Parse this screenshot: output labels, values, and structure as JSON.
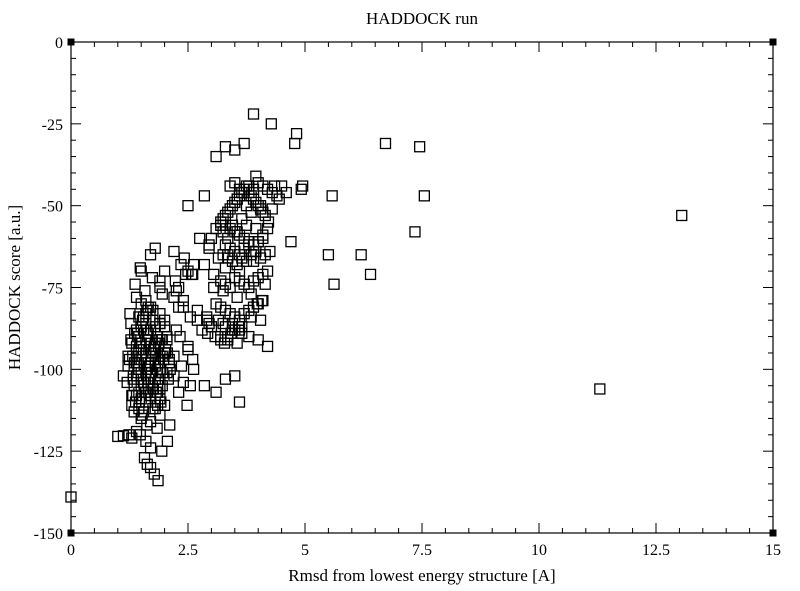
{
  "chart_data": {
    "type": "scatter",
    "title": "HADDOCK run",
    "xlabel": "Rmsd from lowest energy structure [A]",
    "ylabel": "HADDOCK score [a.u.]",
    "xlim": [
      0,
      15
    ],
    "ylim": [
      -150,
      0
    ],
    "xticks": [
      0,
      2.5,
      5,
      7.5,
      10,
      12.5,
      15
    ],
    "xtick_labels": [
      "0",
      "2.5",
      "5",
      "7.5",
      "10",
      "12.5",
      "15"
    ],
    "yticks": [
      0,
      -25,
      -50,
      -75,
      -100,
      -125,
      -150
    ],
    "ytick_labels": [
      "0",
      "-25",
      "-50",
      "-75",
      "-100",
      "-125",
      "-150"
    ],
    "grid": false,
    "marker": "open-square",
    "series": [
      {
        "x": [
          0.0,
          1.0,
          1.12,
          1.24,
          1.3,
          1.4,
          1.48,
          1.57,
          1.63,
          1.7,
          1.78,
          1.86,
          1.94,
          2.06,
          2.11,
          1.6,
          1.7,
          1.35,
          1.45,
          1.55,
          1.75,
          1.85,
          1.5,
          1.7,
          1.9,
          1.62,
          1.84,
          1.4,
          1.5,
          1.6,
          1.7,
          1.8,
          1.9,
          2.0,
          1.45,
          1.65,
          1.85,
          1.35,
          1.55,
          1.75,
          1.95,
          1.4,
          1.5,
          1.6,
          1.7,
          1.8,
          1.9,
          1.45,
          1.65,
          1.85,
          2.05,
          1.4,
          1.5,
          1.6,
          1.7,
          1.8,
          1.9,
          2.0,
          1.55,
          1.75,
          1.95,
          1.4,
          1.5,
          1.6,
          1.7,
          1.8,
          1.9,
          1.45,
          1.65,
          1.85,
          2.05,
          1.4,
          1.5,
          1.6,
          1.7,
          1.8,
          1.9,
          2.0,
          1.55,
          1.75,
          1.45,
          1.6,
          1.75,
          1.9,
          1.5,
          1.7,
          1.32,
          1.43,
          1.55,
          1.65,
          1.77,
          1.88,
          1.98,
          2.08,
          1.36,
          1.58,
          1.8,
          1.28,
          1.38,
          1.5,
          1.62,
          1.72,
          1.85,
          1.95,
          2.1,
          1.26,
          1.3,
          1.35,
          1.47,
          1.53,
          1.64,
          1.72,
          1.83,
          1.92,
          2.02,
          1.25,
          1.33,
          1.42,
          1.52,
          1.62,
          1.68,
          1.78,
          1.9,
          2.0,
          2.12,
          1.12,
          1.22,
          1.3,
          1.42,
          1.5,
          1.6,
          1.7,
          1.8,
          1.94,
          2.06,
          1.2,
          1.28,
          1.36,
          1.46,
          1.55,
          1.66,
          1.76,
          1.87,
          1.96,
          2.1,
          1.22,
          1.32,
          1.4,
          1.5,
          1.6,
          1.7,
          1.8,
          1.9,
          2.02,
          1.3,
          1.4,
          1.5,
          1.62,
          1.72,
          1.82,
          1.92,
          1.45,
          1.66,
          1.86,
          1.37,
          1.58,
          1.74,
          1.95,
          1.48,
          1.9,
          1.5,
          1.6,
          1.7,
          1.8,
          1.9,
          2.0,
          1.4,
          1.65,
          1.9,
          2.05,
          2.2,
          2.35,
          2.42,
          2.5,
          2.62,
          2.23,
          2.3,
          2.45,
          2.58,
          2.2,
          2.4,
          2.55,
          2.7,
          2.25,
          2.33,
          2.5,
          2.6,
          2.2,
          2.4,
          2.55,
          2.3,
          2.48,
          2.2,
          2.36,
          2.5,
          2.62,
          2.25,
          2.4,
          2.3,
          2.85,
          2.95,
          3.0,
          3.1,
          3.2,
          3.25,
          3.3,
          3.35,
          3.4,
          3.45,
          3.5,
          3.55,
          3.6,
          3.65,
          3.7,
          3.75,
          3.8,
          3.85,
          3.9,
          3.95,
          4.0,
          4.05,
          4.1,
          4.15,
          3.2,
          3.3,
          3.4,
          3.5,
          3.6,
          3.7,
          3.8,
          3.9,
          4.0,
          4.1,
          3.25,
          3.45,
          3.65,
          3.85,
          4.05,
          3.3,
          3.4,
          3.5,
          3.6,
          3.7,
          3.8,
          3.9,
          4.0,
          4.1,
          4.2,
          3.35,
          3.55,
          3.75,
          3.95,
          3.4,
          3.5,
          3.6,
          3.7,
          3.8,
          3.9,
          4.0,
          4.1,
          4.2,
          4.3,
          4.4,
          4.5,
          4.6,
          3.55,
          3.75,
          3.15,
          3.25,
          3.35,
          3.45,
          3.55,
          3.65,
          3.75,
          3.85,
          3.95,
          4.05,
          4.15,
          4.25,
          3.3,
          3.6,
          3.9,
          3.05,
          3.2,
          3.3,
          3.4,
          3.5,
          3.6,
          3.7,
          3.8,
          3.9,
          4.0,
          4.1,
          4.2,
          3.25,
          3.55,
          3.85,
          4.15,
          3.1,
          3.2,
          3.3,
          3.4,
          3.5,
          3.6,
          3.7,
          3.8,
          3.9,
          4.0,
          4.1,
          3.25,
          3.45,
          3.65,
          3.85,
          4.05,
          3.35,
          3.55,
          3.8,
          4.0,
          4.2,
          2.8,
          2.92,
          3.0,
          3.08,
          3.2,
          3.28,
          3.35,
          3.42,
          3.5,
          3.58,
          3.65,
          2.95,
          3.15,
          3.3,
          3.45,
          3.6,
          3.98,
          4.08,
          4.22,
          4.3,
          4.35,
          4.45,
          3.9,
          4.28,
          4.7,
          4.78,
          4.82,
          4.92,
          4.95,
          5.5,
          5.58,
          5.62,
          6.2,
          6.4,
          6.72,
          7.35,
          7.45,
          7.55,
          11.3,
          13.05,
          3.1,
          3.3,
          3.5,
          3.7,
          3.6,
          3.5,
          2.85,
          3.1,
          3.3,
          2.9,
          3.2,
          2.75,
          2.95,
          3.35,
          2.7,
          2.9,
          3.05,
          2.6,
          2.5,
          2.85,
          3.95
        ],
        "y": [
          -139,
          -120.5,
          -120.3,
          -120,
          -121,
          -119,
          -120,
          -127,
          -129,
          -130,
          -132,
          -134,
          -125,
          -122,
          -117,
          -122,
          -124,
          -113,
          -112,
          -113,
          -112,
          -111,
          -115,
          -116,
          -114,
          -117,
          -118,
          -108,
          -109,
          -110,
          -108,
          -110,
          -109,
          -111,
          -107,
          -106,
          -107,
          -105,
          -104,
          -106,
          -105,
          -102,
          -103,
          -101,
          -102,
          -103,
          -101,
          -100,
          -99,
          -100,
          -101,
          -98,
          -97,
          -96,
          -98,
          -97,
          -96,
          -95,
          -94,
          -95,
          -96,
          -93,
          -92,
          -91,
          -93,
          -92,
          -91,
          -90,
          -89,
          -90,
          -91,
          -88,
          -87,
          -86,
          -88,
          -87,
          -86,
          -85,
          -84,
          -85,
          -84,
          -83,
          -82,
          -83,
          -80,
          -81,
          -96,
          -101,
          -104,
          -98,
          -94,
          -92,
          -97,
          -103,
          -89,
          -107,
          -112,
          -86,
          -110,
          -94,
          -88,
          -101,
          -105,
          -91,
          -97,
          -83,
          -108,
          -99,
          -92,
          -85,
          -104,
          -96,
          -91,
          -110,
          -94,
          -97,
          -103,
          -89,
          -114,
          -82,
          -99,
          -93,
          -106,
          -87,
          -100,
          -102,
          -96,
          -111,
          -90,
          -103,
          -95,
          -108,
          -99,
          -91,
          -95,
          -104,
          -91,
          -98,
          -110,
          -88,
          -99,
          -106,
          -93,
          -101,
          -98,
          -99,
          -108,
          -95,
          -101,
          -107,
          -94,
          -98,
          -103,
          -95,
          -92,
          -97,
          -105,
          -100,
          -95,
          -107,
          -100,
          -94,
          -103,
          -97,
          -74,
          -76,
          -72,
          -77,
          -69,
          -75,
          -70,
          -79,
          -65,
          -63,
          -73,
          -70,
          -78,
          -81,
          -86,
          -90,
          -64,
          -68,
          -66,
          -70,
          -68,
          -73,
          -75,
          -71,
          -71,
          -78,
          -81,
          -84,
          -85,
          -88,
          -90,
          -93,
          -97,
          -102,
          -104,
          -105,
          -107,
          -111,
          -96,
          -99,
          -94,
          -100,
          -76,
          -79,
          -81,
          -68,
          -63,
          -60,
          -57,
          -56,
          -54,
          -53,
          -52,
          -51,
          -50,
          -49,
          -48,
          -47,
          -46,
          -45,
          -44,
          -46,
          -47,
          -48,
          -49,
          -50,
          -51,
          -52,
          -53,
          -55,
          -56,
          -57,
          -58,
          -59,
          -60,
          -61,
          -62,
          -61,
          -60,
          -58,
          -56,
          -54,
          -52,
          -50,
          -62,
          -63,
          -64,
          -65,
          -63,
          -62,
          -64,
          -61,
          -59,
          -57,
          -60,
          -58,
          -56,
          -57,
          -44,
          -43,
          -45,
          -46,
          -44,
          -45,
          -43,
          -44,
          -45,
          -46,
          -47,
          -44,
          -46,
          -48,
          -50,
          -66,
          -65,
          -66,
          -67,
          -68,
          -66,
          -67,
          -65,
          -64,
          -66,
          -65,
          -64,
          -69,
          -70,
          -67,
          -71,
          -73,
          -74,
          -75,
          -72,
          -73,
          -74,
          -75,
          -73,
          -72,
          -71,
          -70,
          -76,
          -78,
          -77,
          -74,
          -80,
          -81,
          -82,
          -83,
          -84,
          -85,
          -83,
          -82,
          -81,
          -80,
          -79,
          -86,
          -88,
          -87,
          -84,
          -85,
          -91,
          -92,
          -90,
          -91,
          -93,
          -88,
          -89,
          -87,
          -90,
          -91,
          -92,
          -90,
          -89,
          -88,
          -87,
          -89,
          -86,
          -85,
          -87,
          -86,
          -88,
          -80,
          -79,
          -55,
          -51,
          -44,
          -48,
          -22,
          -25,
          -61,
          -31,
          -28,
          -45,
          -44,
          -65,
          -47,
          -74,
          -65,
          -71,
          -31,
          -58,
          -32,
          -47,
          -106,
          -53,
          -35,
          -32,
          -33,
          -31,
          -110,
          -102,
          -105,
          -107,
          -103,
          -85,
          -90,
          -60,
          -62,
          -65,
          -82,
          -84,
          -75,
          -71,
          -50,
          -47,
          -41
        ]
      }
    ]
  }
}
